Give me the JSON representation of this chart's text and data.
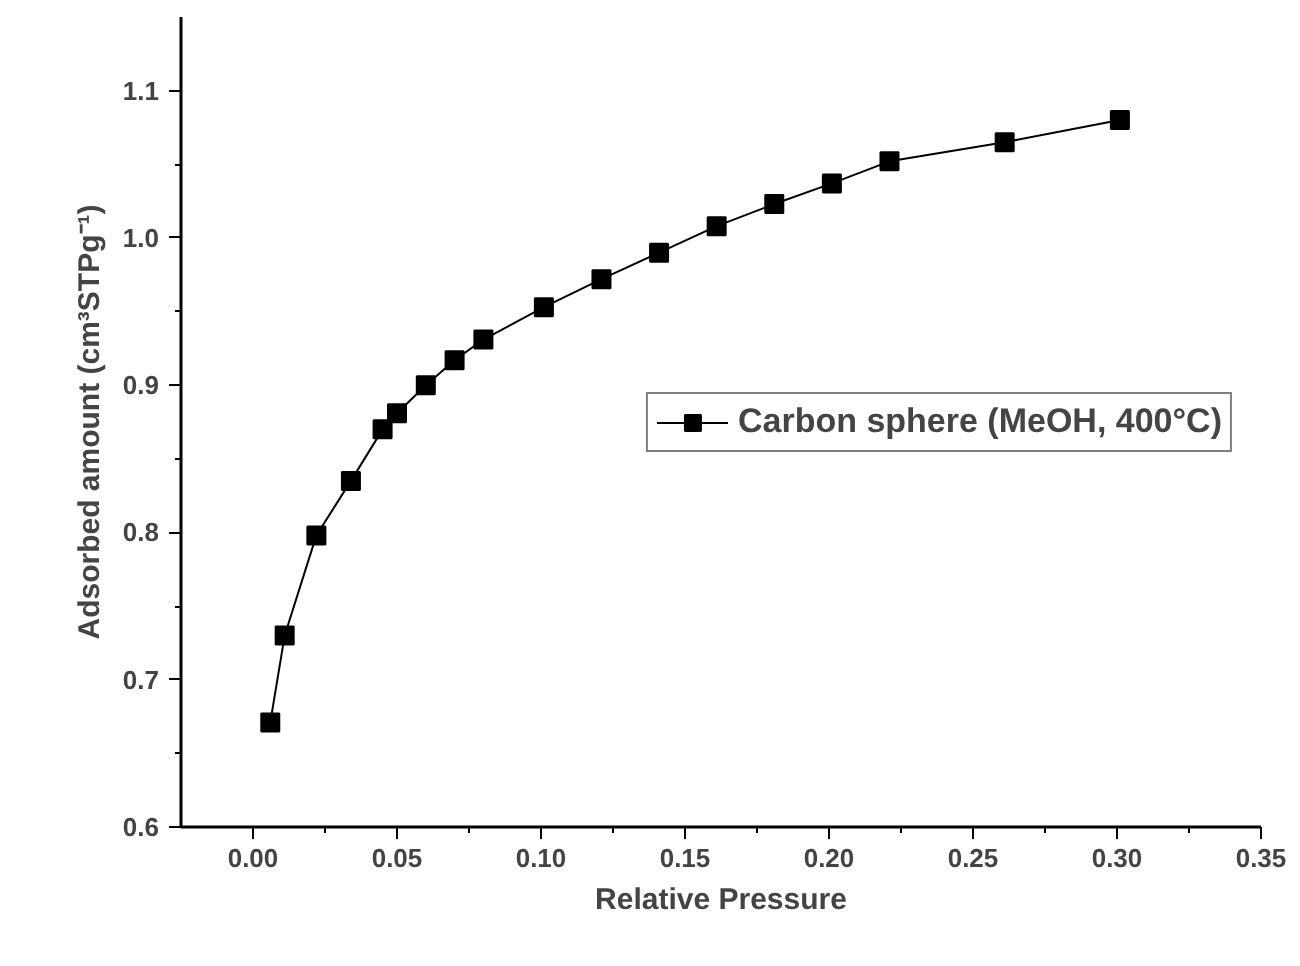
{
  "chart_data": {
    "type": "line",
    "xlabel": "Relative Pressure",
    "ylabel": "Adsorbed amount (cm³STPg⁻¹)",
    "x": [
      0.006,
      0.011,
      0.022,
      0.034,
      0.045,
      0.05,
      0.06,
      0.07,
      0.08,
      0.101,
      0.121,
      0.141,
      0.161,
      0.181,
      0.201,
      0.221,
      0.261,
      0.301
    ],
    "series": [
      {
        "name": "Carbon sphere (MeOH, 400°C)",
        "color": "#000000",
        "values": [
          0.671,
          0.73,
          0.798,
          0.835,
          0.87,
          0.881,
          0.9,
          0.917,
          0.931,
          0.953,
          0.972,
          0.99,
          1.008,
          1.023,
          1.037,
          1.052,
          1.065,
          1.08
        ]
      }
    ],
    "xlim": [
      -0.025,
      0.35
    ],
    "ylim": [
      0.6,
      1.15
    ],
    "xticks": [
      {
        "value": 0.0,
        "label": "0.00"
      },
      {
        "value": 0.05,
        "label": "0.05"
      },
      {
        "value": 0.1,
        "label": "0.10"
      },
      {
        "value": 0.15,
        "label": "0.15"
      },
      {
        "value": 0.2,
        "label": "0.20"
      },
      {
        "value": 0.25,
        "label": "0.25"
      },
      {
        "value": 0.3,
        "label": "0.30"
      },
      {
        "value": 0.35,
        "label": "0.35"
      }
    ],
    "yticks": [
      0.6,
      0.7,
      0.8,
      0.9,
      {
        "value": 1.0,
        "label": "1.0"
      },
      1.1
    ],
    "marker": "square",
    "line_style": "solid",
    "legend": "right",
    "grid": false
  }
}
